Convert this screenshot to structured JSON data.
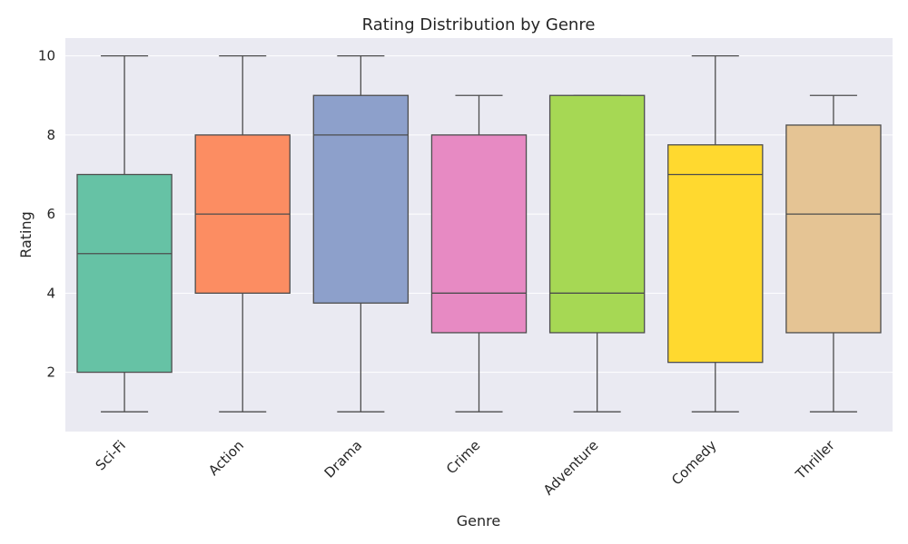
{
  "chart_data": {
    "type": "box",
    "title": "Rating Distribution by Genre",
    "xlabel": "Genre",
    "ylabel": "Rating",
    "ylim": [
      0.5,
      10.45
    ],
    "yticks": [
      2,
      4,
      6,
      8,
      10
    ],
    "grid": true,
    "legend": "none",
    "background_color": "#eaeaf2",
    "categories": [
      "Sci-Fi",
      "Action",
      "Drama",
      "Crime",
      "Adventure",
      "Comedy",
      "Thriller"
    ],
    "boxes": [
      {
        "category": "Sci-Fi",
        "min": 1,
        "q1": 2,
        "median": 5,
        "q3": 7,
        "max": 10,
        "color": "#66c2a5"
      },
      {
        "category": "Action",
        "min": 1,
        "q1": 4,
        "median": 6,
        "q3": 8,
        "max": 10,
        "color": "#fc8d62"
      },
      {
        "category": "Drama",
        "min": 1,
        "q1": 3.75,
        "median": 8,
        "q3": 9,
        "max": 10,
        "color": "#8da0cb"
      },
      {
        "category": "Crime",
        "min": 1,
        "q1": 3,
        "median": 4,
        "q3": 8,
        "max": 9,
        "color": "#e78ac3"
      },
      {
        "category": "Adventure",
        "min": 1,
        "q1": 3,
        "median": 4,
        "q3": 9,
        "max": 9,
        "color": "#a6d854"
      },
      {
        "category": "Comedy",
        "min": 1,
        "q1": 2.25,
        "median": 7,
        "q3": 7.75,
        "max": 10,
        "color": "#ffd92f"
      },
      {
        "category": "Thriller",
        "min": 1,
        "q1": 3,
        "median": 6,
        "q3": 8.25,
        "max": 9,
        "color": "#e5c494"
      }
    ]
  }
}
